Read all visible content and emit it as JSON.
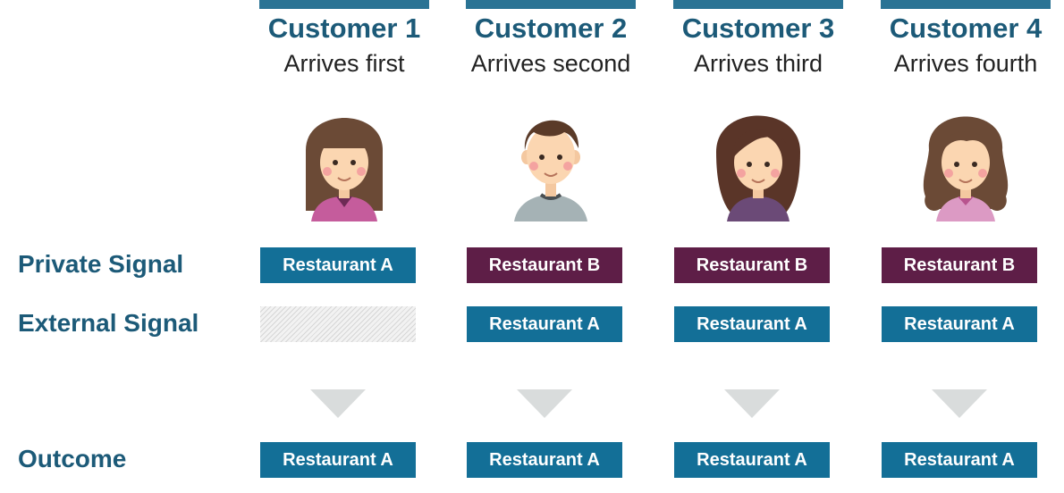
{
  "row_labels": {
    "private_signal": "Private Signal",
    "external_signal": "External Signal",
    "outcome": "Outcome"
  },
  "colors": {
    "heading": "#1c5a78",
    "restaurant_a": "#136f97",
    "restaurant_b": "#5e1e47",
    "arrow": "#d9dcdc"
  },
  "customers": [
    {
      "title": "Customer 1",
      "subtitle": "Arrives first",
      "avatar": "woman-long-straight-hair-avatar",
      "private_signal": "Restaurant A",
      "private_kind": "a",
      "external_signal": "",
      "external_kind": "none",
      "outcome": "Restaurant A",
      "outcome_kind": "a"
    },
    {
      "title": "Customer 2",
      "subtitle": "Arrives second",
      "avatar": "man-short-hair-avatar",
      "private_signal": "Restaurant B",
      "private_kind": "b",
      "external_signal": "Restaurant A",
      "external_kind": "a",
      "outcome": "Restaurant A",
      "outcome_kind": "a"
    },
    {
      "title": "Customer 3",
      "subtitle": "Arrives third",
      "avatar": "woman-side-bangs-avatar",
      "private_signal": "Restaurant B",
      "private_kind": "b",
      "external_signal": "Restaurant A",
      "external_kind": "a",
      "outcome": "Restaurant A",
      "outcome_kind": "a"
    },
    {
      "title": "Customer 4",
      "subtitle": "Arrives fourth",
      "avatar": "woman-wavy-hair-avatar",
      "private_signal": "Restaurant B",
      "private_kind": "b",
      "external_signal": "Restaurant A",
      "external_kind": "a",
      "outcome": "Restaurant A",
      "outcome_kind": "a"
    }
  ]
}
